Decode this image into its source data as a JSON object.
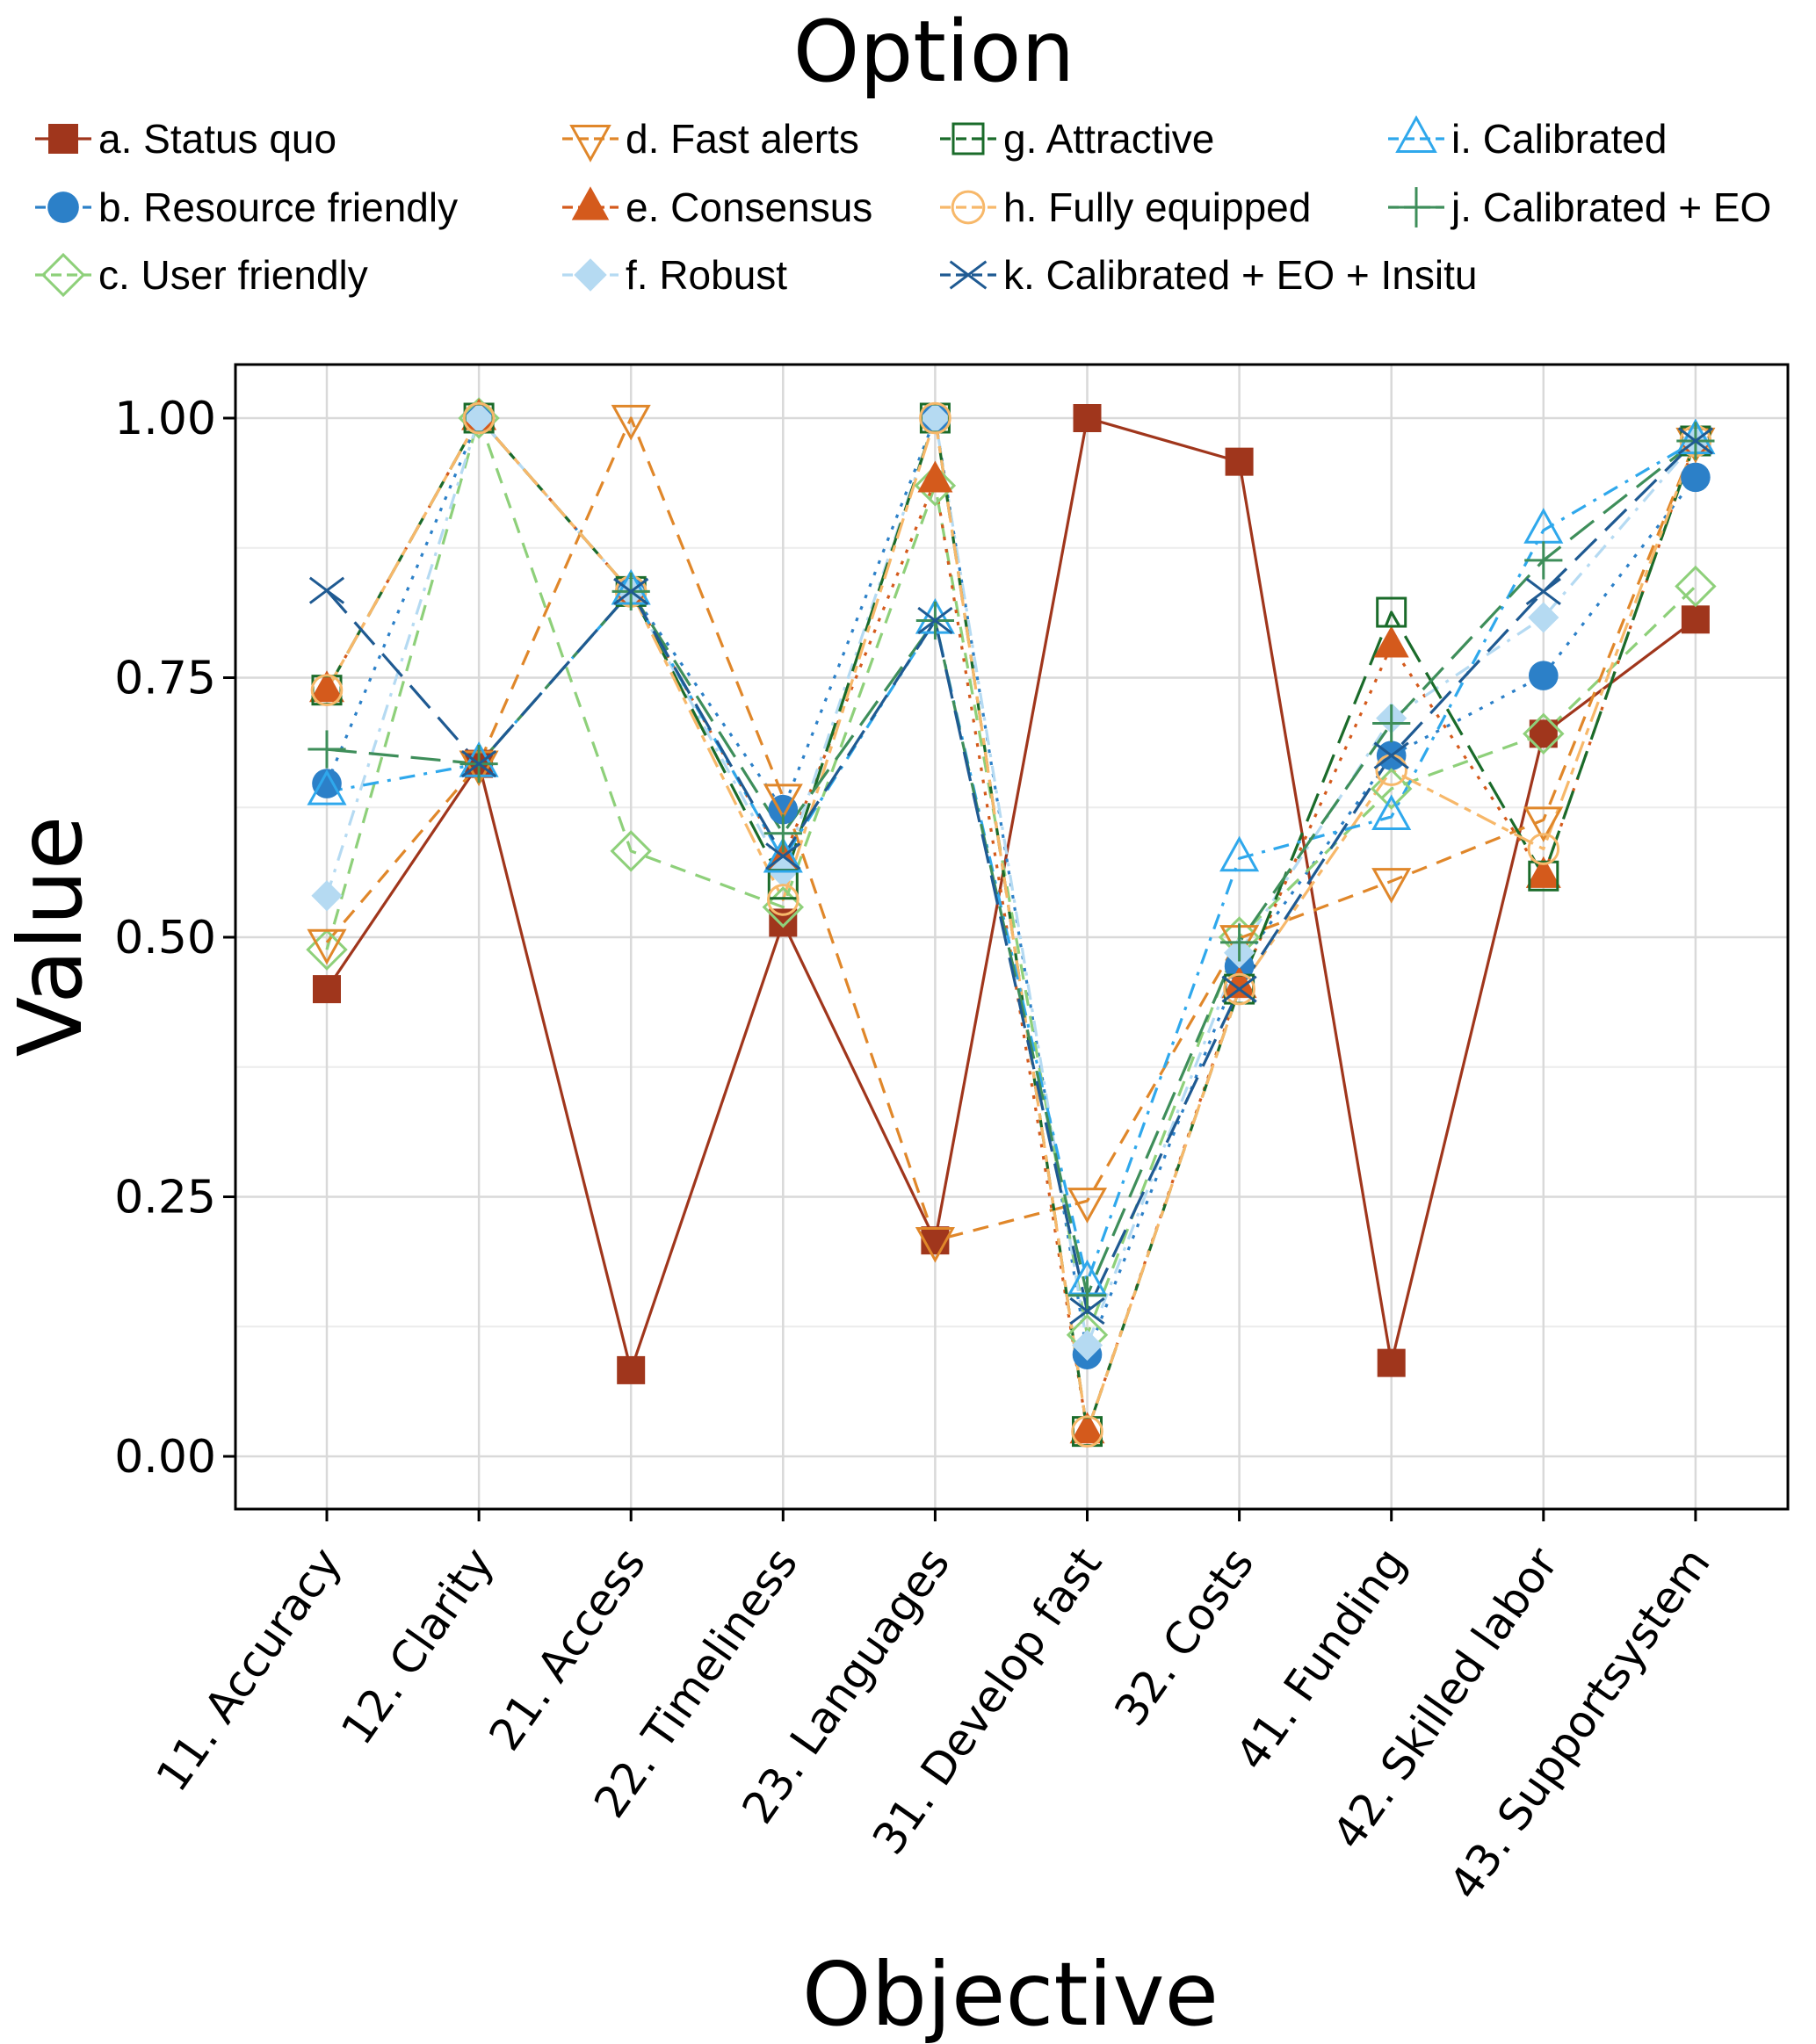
{
  "chart_data": {
    "type": "line",
    "title": "Option",
    "xlabel": "Objective",
    "ylabel": "Value",
    "ylim": [
      -0.05,
      1.05
    ],
    "yticks": [
      "0.00",
      "0.25",
      "0.50",
      "0.75",
      "1.00"
    ],
    "ytick_values": [
      0,
      0.25,
      0.5,
      0.75,
      1.0
    ],
    "grid": true,
    "legend_title": "Option",
    "legend_position": "top",
    "categories": [
      "11. Accuracy",
      "12. Clarity",
      "21. Access",
      "22. Timeliness",
      "23. Languages",
      "31. Develop fast",
      "32. Costs",
      "41. Funding",
      "42. Skilled labor",
      "43. Supportsystem"
    ],
    "series": [
      {
        "name": "a. Status quo",
        "color": "#A0361C",
        "marker": "square-filled",
        "dash": "solid",
        "values": [
          0.45,
          0.667,
          0.083,
          0.514,
          0.208,
          1.0,
          0.958,
          0.09,
          0.696,
          0.806
        ]
      },
      {
        "name": "b. Resource friendly",
        "color": "#2C80C8",
        "marker": "circle-filled",
        "dash": "dotted",
        "values": [
          0.648,
          1.0,
          0.833,
          0.623,
          1.0,
          0.098,
          0.472,
          0.675,
          0.752,
          0.943
        ]
      },
      {
        "name": "c. User friendly",
        "color": "#8ED07A",
        "marker": "diamond-open",
        "dash": "dashed",
        "values": [
          0.488,
          1.0,
          0.583,
          0.529,
          0.935,
          0.117,
          0.5,
          0.643,
          0.696,
          0.838
        ]
      },
      {
        "name": "d. Fast alerts",
        "color": "#E0872A",
        "marker": "triangle-down-open",
        "dash": "dashed",
        "values": [
          0.495,
          0.667,
          1.0,
          0.635,
          0.208,
          0.246,
          0.499,
          0.554,
          0.613,
          0.978
        ]
      },
      {
        "name": "e. Consensus",
        "color": "#D45A1C",
        "marker": "triangle-up-filled",
        "dash": "dotted",
        "values": [
          0.738,
          1.0,
          0.833,
          0.575,
          0.94,
          0.024,
          0.453,
          0.781,
          0.559,
          0.978
        ]
      },
      {
        "name": "f. Robust",
        "color": "#B5DAF2",
        "marker": "diamond-filled",
        "dash": "dashdot",
        "values": [
          0.54,
          1.0,
          0.833,
          0.563,
          1.0,
          0.107,
          0.485,
          0.711,
          0.808,
          0.978
        ]
      },
      {
        "name": "g. Attractive",
        "color": "#1A6B2A",
        "marker": "square-open",
        "dash": "longdash",
        "values": [
          0.738,
          1.0,
          0.833,
          0.551,
          1.0,
          0.024,
          0.45,
          0.813,
          0.559,
          0.978
        ]
      },
      {
        "name": "h. Fully equipped",
        "color": "#F7B86A",
        "marker": "circle-open",
        "dash": "twodash",
        "values": [
          0.738,
          1.0,
          0.833,
          0.536,
          1.0,
          0.024,
          0.45,
          0.661,
          0.585,
          0.978
        ]
      },
      {
        "name": "i. Calibrated",
        "color": "#2FA8EC",
        "marker": "triangle-up-open",
        "dash": "dashdot",
        "values": [
          0.64,
          0.667,
          0.833,
          0.575,
          0.805,
          0.168,
          0.576,
          0.616,
          0.892,
          0.978
        ]
      },
      {
        "name": "j. Calibrated + EO",
        "color": "#3E8E5A",
        "marker": "plus",
        "dash": "longdash",
        "values": [
          0.681,
          0.667,
          0.833,
          0.6,
          0.805,
          0.155,
          0.495,
          0.706,
          0.863,
          0.978
        ]
      },
      {
        "name": "k. Calibrated + EO + Insitu",
        "color": "#1F5A92",
        "marker": "cross",
        "dash": "longdash",
        "values": [
          0.834,
          0.667,
          0.833,
          0.578,
          0.805,
          0.14,
          0.45,
          0.675,
          0.833,
          0.978
        ]
      }
    ]
  }
}
